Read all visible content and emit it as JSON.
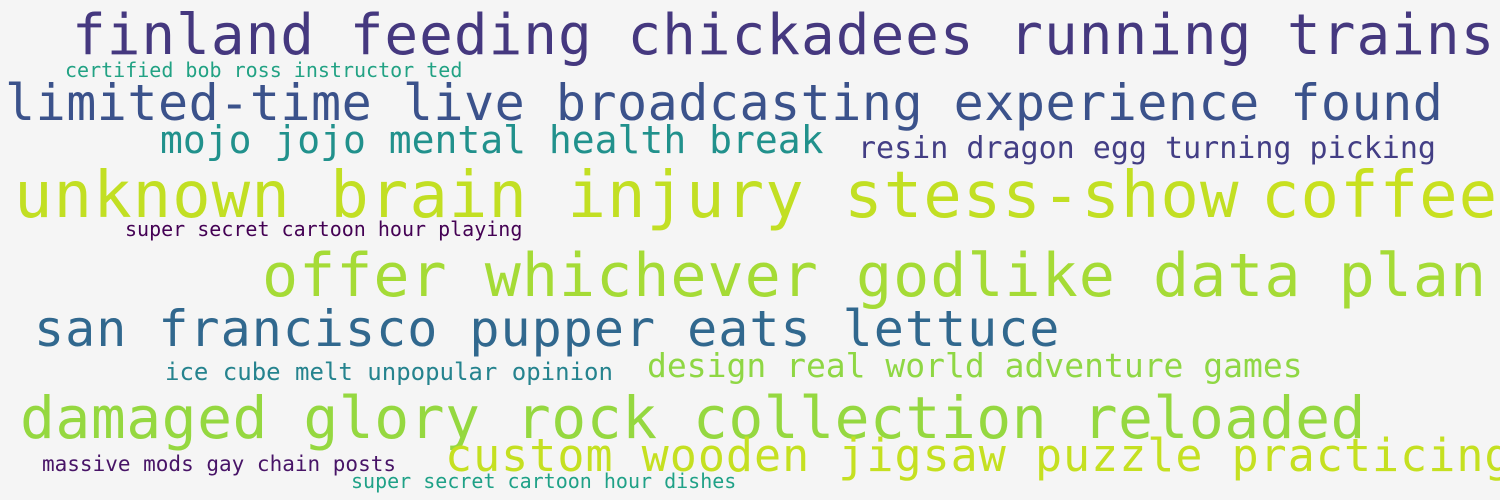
{
  "cloud": {
    "words": [
      {
        "text": "finland feeding chickadees running trains",
        "color": "#45387f"
      },
      {
        "text": "certified bob ross instructor ted",
        "color": "#22a284"
      },
      {
        "text": "limited-time live broadcasting experience found",
        "color": "#3b528b"
      },
      {
        "text": "mojo jojo mental health break",
        "color": "#21918c"
      },
      {
        "text": "resin dragon egg turning picking",
        "color": "#433e85"
      },
      {
        "text": "unknown brain injury stess-show",
        "color": "#c2df23"
      },
      {
        "text": "coffee",
        "color": "#c8e020"
      },
      {
        "text": "super secret cartoon hour playing",
        "color": "#440154"
      },
      {
        "text": "offer whichever godlike data plan",
        "color": "#a5db36"
      },
      {
        "text": "san francisco pupper eats lettuce",
        "color": "#31688e"
      },
      {
        "text": "design real world adventure games",
        "color": "#8fd744"
      },
      {
        "text": "ice cube melt unpopular opinion",
        "color": "#25838e"
      },
      {
        "text": "damaged glory rock collection reloaded",
        "color": "#95d840"
      },
      {
        "text": "custom wooden jigsaw puzzle practicing",
        "color": "#c5e021"
      },
      {
        "text": "massive mods gay chain posts",
        "color": "#481467"
      },
      {
        "text": "super secret cartoon hour dishes",
        "color": "#1fa187"
      }
    ]
  }
}
